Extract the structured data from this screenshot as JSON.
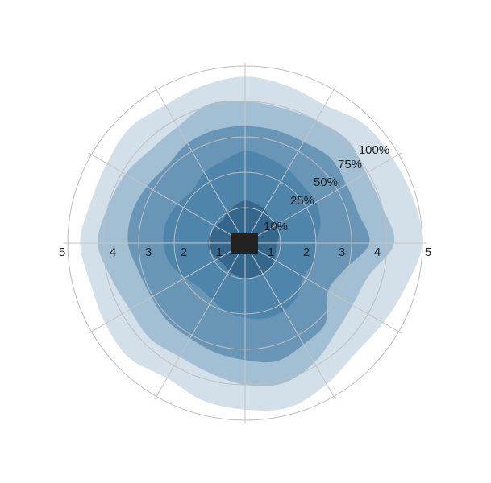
{
  "chart_data": {
    "type": "area",
    "subtype": "polar-percentile-bands",
    "title": "",
    "radial_ticks": [
      "1",
      "2",
      "3",
      "4",
      "5"
    ],
    "radial_range": [
      0,
      5
    ],
    "grid": true,
    "spokes": 12,
    "angles_deg": [
      0,
      15,
      30,
      45,
      60,
      75,
      90,
      105,
      120,
      135,
      150,
      165,
      180,
      195,
      210,
      225,
      240,
      255,
      270,
      285,
      300,
      315,
      330,
      345
    ],
    "bands": [
      {
        "label": "100%",
        "color": "#d3e0ea",
        "r": [
          5.0,
          4.9,
          4.8,
          4.75,
          4.5,
          4.6,
          4.7,
          4.6,
          4.5,
          4.6,
          4.5,
          4.5,
          4.65,
          4.5,
          4.55,
          4.6,
          4.4,
          4.6,
          4.7,
          4.8,
          4.6,
          4.4,
          4.5,
          4.7
        ]
      },
      {
        "label": "75%",
        "color": "#a3bfd3",
        "r": [
          4.2,
          4.0,
          3.95,
          4.1,
          4.0,
          3.95,
          4.0,
          4.05,
          3.8,
          3.75,
          3.9,
          4.0,
          4.15,
          3.9,
          3.75,
          3.8,
          3.7,
          3.8,
          4.0,
          4.1,
          3.9,
          3.6,
          3.5,
          3.6
        ]
      },
      {
        "label": "50%",
        "color": "#6996b7",
        "r": [
          3.5,
          3.3,
          3.3,
          3.4,
          3.3,
          3.3,
          3.3,
          3.3,
          3.25,
          3.1,
          3.2,
          3.3,
          3.3,
          3.1,
          3.05,
          3.1,
          3.1,
          3.2,
          3.3,
          3.45,
          3.3,
          3.2,
          2.7,
          2.9
        ]
      },
      {
        "label": "25%",
        "color": "#4f84ab",
        "r": [
          2.0,
          2.2,
          2.3,
          2.3,
          2.4,
          2.5,
          2.6,
          2.4,
          2.3,
          2.1,
          2.2,
          2.3,
          2.3,
          2.2,
          1.95,
          1.8,
          1.85,
          2.0,
          2.1,
          2.2,
          2.2,
          2.1,
          1.9,
          2.0
        ]
      },
      {
        "label": "10%",
        "color": "#35678c",
        "r": [
          0.9,
          1.0,
          1.05,
          1.0,
          1.1,
          1.15,
          1.2,
          1.1,
          1.0,
          0.9,
          0.95,
          1.0,
          1.05,
          1.0,
          0.9,
          0.85,
          0.9,
          0.95,
          1.0,
          1.0,
          1.0,
          1.0,
          0.95,
          0.9
        ]
      }
    ],
    "center_marker_color": "#222222"
  }
}
